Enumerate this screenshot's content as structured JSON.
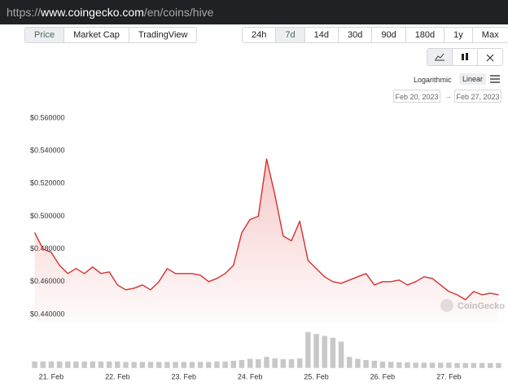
{
  "browser": {
    "url_scheme": "https://",
    "url_host": "www.coingecko.com",
    "url_path": "/en/coins/hive"
  },
  "tabs": [
    "Price",
    "Market Cap",
    "TradingView"
  ],
  "selected_tab": "Price",
  "ranges": [
    "24h",
    "7d",
    "14d",
    "30d",
    "90d",
    "180d",
    "1y",
    "Max"
  ],
  "selected_range": "7d",
  "scale_options": [
    "Logarithmic",
    "Linear"
  ],
  "selected_scale": "Linear",
  "date_from": "Feb 20, 2023",
  "date_to": "Feb 27, 2023",
  "date_separator": "→",
  "watermark": "CoinGecko",
  "chart_data": {
    "type": "line",
    "categories": [
      null,
      null,
      "21. Feb",
      null,
      null,
      null,
      null,
      null,
      null,
      null,
      "22. Feb",
      null,
      null,
      null,
      null,
      null,
      null,
      null,
      "23. Feb",
      null,
      null,
      null,
      null,
      null,
      null,
      null,
      "24. Feb",
      null,
      null,
      null,
      null,
      null,
      null,
      null,
      "25. Feb",
      null,
      null,
      null,
      null,
      null,
      null,
      null,
      "26. Feb",
      null,
      null,
      null,
      null,
      null,
      null,
      null,
      "27. Feb",
      null,
      null,
      null,
      null,
      null,
      null
    ],
    "series": [
      {
        "color": "#d62f2f",
        "values": [
          0.49,
          0.48,
          0.478,
          0.47,
          0.465,
          0.468,
          0.465,
          0.469,
          0.465,
          0.466,
          0.458,
          0.455,
          0.456,
          0.458,
          0.455,
          0.46,
          0.468,
          0.465,
          0.465,
          0.465,
          0.464,
          0.46,
          0.462,
          0.465,
          0.47,
          0.49,
          0.498,
          0.5,
          0.535,
          0.513,
          0.488,
          0.485,
          0.497,
          0.473,
          0.468,
          0.463,
          0.46,
          0.459,
          0.461,
          0.463,
          0.465,
          0.458,
          0.46,
          0.46,
          0.461,
          0.458,
          0.46,
          0.463,
          0.462,
          0.458,
          0.454,
          0.452,
          0.449,
          0.454,
          0.452,
          0.453,
          0.452
        ]
      },
      {
        "color": "#c8c8c8",
        "axis": "y2",
        "values": [
          18,
          18,
          18,
          18,
          18,
          18,
          18,
          18,
          18,
          18,
          18,
          17,
          17,
          17,
          17,
          17,
          17,
          17,
          17,
          17,
          17,
          17,
          18,
          18,
          20,
          22,
          25,
          24,
          30,
          26,
          24,
          24,
          26,
          95,
          90,
          85,
          80,
          70,
          30,
          25,
          22,
          20,
          18,
          17,
          16,
          16,
          15,
          15,
          15,
          15,
          15,
          14,
          14,
          14,
          14,
          14,
          14
        ]
      }
    ],
    "ylim": [
      0.435,
      0.565
    ],
    "yticks": [
      {
        "value": 0.44,
        "label": "$0.440000"
      },
      {
        "value": 0.46,
        "label": "$0.460000"
      },
      {
        "value": 0.48,
        "label": "$0.480000"
      },
      {
        "value": 0.5,
        "label": "$0.500000"
      },
      {
        "value": 0.52,
        "label": "$0.520000"
      },
      {
        "value": 0.54,
        "label": "$0.540000"
      },
      {
        "value": 0.56,
        "label": "$0.560000"
      }
    ],
    "y2lim": [
      0,
      100
    ],
    "grid": false
  }
}
